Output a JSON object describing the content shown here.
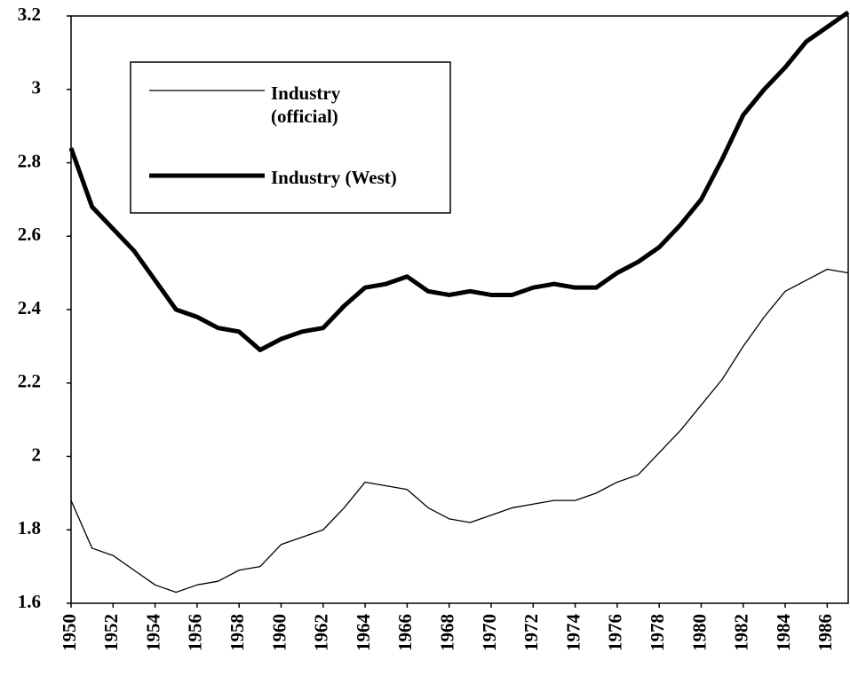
{
  "chart_data": {
    "type": "line",
    "x": [
      1950,
      1951,
      1952,
      1953,
      1954,
      1955,
      1956,
      1957,
      1958,
      1959,
      1960,
      1961,
      1962,
      1963,
      1964,
      1965,
      1966,
      1967,
      1968,
      1969,
      1970,
      1971,
      1972,
      1973,
      1974,
      1975,
      1976,
      1977,
      1978,
      1979,
      1980,
      1981,
      1982,
      1983,
      1984,
      1985,
      1986,
      1987
    ],
    "series": [
      {
        "name": "Industry (official)",
        "color": "#000000",
        "width": 1.3,
        "values": [
          1.88,
          1.75,
          1.73,
          1.69,
          1.65,
          1.63,
          1.65,
          1.66,
          1.69,
          1.7,
          1.76,
          1.78,
          1.8,
          1.86,
          1.93,
          1.92,
          1.91,
          1.86,
          1.83,
          1.82,
          1.84,
          1.86,
          1.87,
          1.88,
          1.88,
          1.9,
          1.93,
          1.95,
          2.01,
          2.07,
          2.14,
          2.21,
          2.3,
          2.38,
          2.45,
          2.48,
          2.51,
          2.5
        ]
      },
      {
        "name": "Industry (West)",
        "color": "#000000",
        "width": 5,
        "values": [
          2.84,
          2.68,
          2.62,
          2.56,
          2.48,
          2.4,
          2.38,
          2.35,
          2.34,
          2.29,
          2.32,
          2.34,
          2.35,
          2.41,
          2.46,
          2.47,
          2.49,
          2.45,
          2.44,
          2.45,
          2.44,
          2.44,
          2.46,
          2.47,
          2.46,
          2.46,
          2.5,
          2.53,
          2.57,
          2.63,
          2.7,
          2.81,
          2.93,
          3.0,
          3.06,
          3.13,
          3.17,
          3.21
        ]
      }
    ],
    "xlim": [
      1950,
      1987
    ],
    "xticks": [
      1950,
      1952,
      1954,
      1956,
      1958,
      1960,
      1962,
      1964,
      1966,
      1968,
      1970,
      1972,
      1974,
      1976,
      1978,
      1980,
      1982,
      1984,
      1986
    ],
    "ylim": [
      1.6,
      3.2
    ],
    "yticks": [
      1.6,
      1.8,
      2,
      2.2,
      2.4,
      2.6,
      2.8,
      3,
      3.2
    ],
    "grid": false
  }
}
